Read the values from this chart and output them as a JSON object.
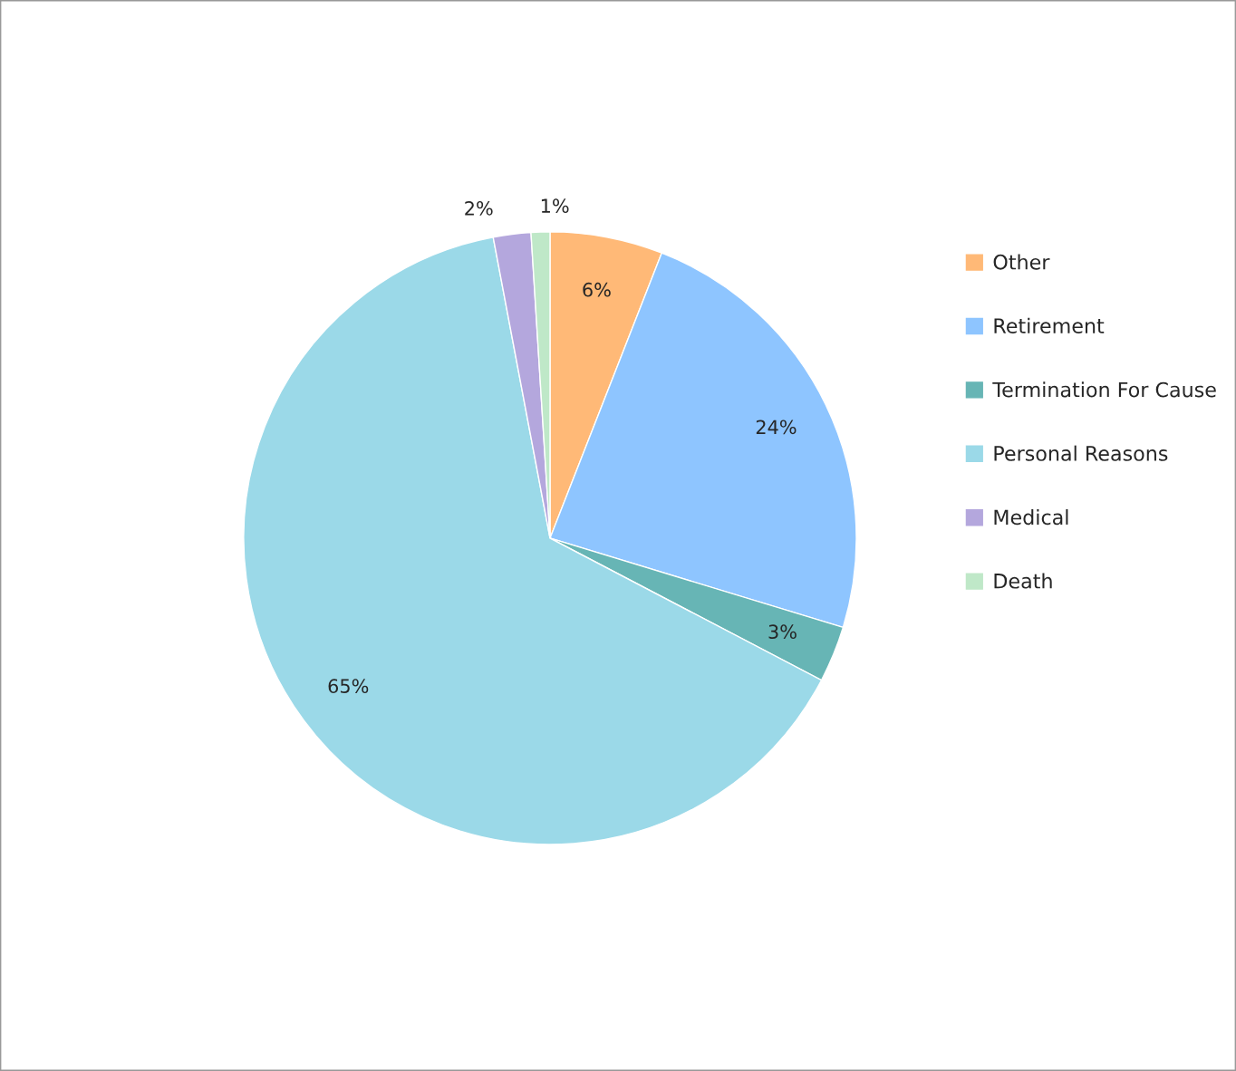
{
  "chart_data": {
    "type": "pie",
    "categories": [
      "Other",
      "Retirement",
      "Termination For Cause",
      "Personal Reasons",
      "Medical",
      "Death"
    ],
    "values": [
      6,
      24,
      3,
      65,
      2,
      1
    ],
    "colors": [
      "#ffb977",
      "#8ec5ff",
      "#67b5b5",
      "#9bd9e8",
      "#b4a7dd",
      "#bfe8c8"
    ],
    "value_labels": [
      "6%",
      "24%",
      "3%",
      "65%",
      "2%",
      "1%"
    ],
    "legend": "right"
  }
}
